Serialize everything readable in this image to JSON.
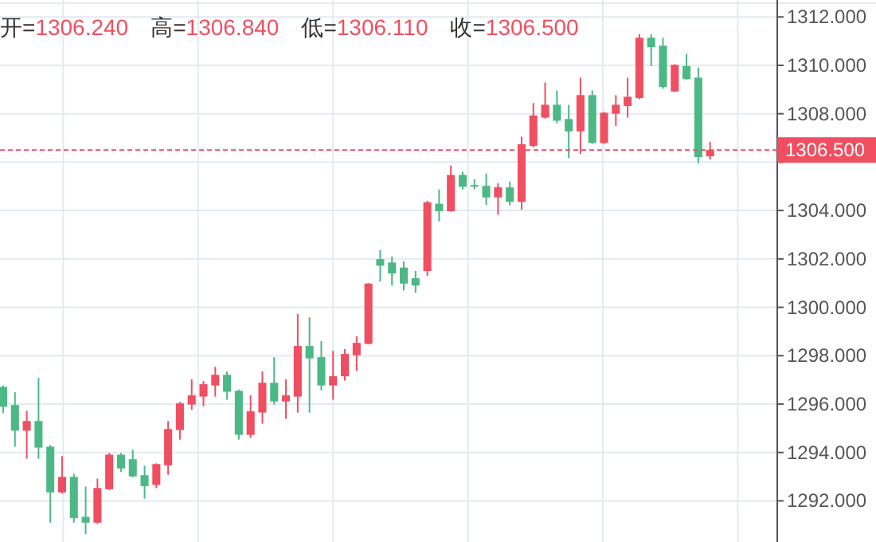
{
  "chart_data": {
    "type": "candlestick",
    "annotations": [
      "开=1306.240",
      "高=1306.840",
      "低=1306.110",
      "收=1306.500"
    ],
    "categories": [
      null,
      null,
      null,
      null,
      null,
      null,
      null,
      null,
      null,
      null,
      null,
      null,
      null,
      null,
      null,
      null,
      null,
      null,
      null,
      null,
      null,
      null,
      null,
      null,
      null,
      null,
      null,
      null,
      null,
      null,
      null,
      null,
      null,
      null,
      null,
      null,
      null,
      null,
      null,
      null,
      null,
      null,
      null,
      null,
      null,
      null,
      null,
      null,
      null,
      null,
      null,
      null,
      null,
      null,
      null,
      null,
      null,
      null,
      null,
      null,
      null
    ],
    "ohlc": [
      [
        1296.71,
        1296.77,
        1295.63,
        1295.89
      ],
      [
        1295.96,
        1296.49,
        1294.24,
        1294.9
      ],
      [
        1294.9,
        1295.72,
        1293.74,
        1295.3
      ],
      [
        1295.3,
        1297.08,
        1293.74,
        1294.2
      ],
      [
        1294.24,
        1294.31,
        1291.1,
        1292.35
      ],
      [
        1292.35,
        1293.85,
        1292.3,
        1292.99
      ],
      [
        1292.99,
        1293.12,
        1291.1,
        1291.29
      ],
      [
        1291.34,
        1292.59,
        1290.63,
        1291.1
      ],
      [
        1291.1,
        1292.92,
        1291.05,
        1292.53
      ],
      [
        1292.48,
        1293.98,
        1292.45,
        1293.91
      ],
      [
        1293.91,
        1293.98,
        1293.19,
        1293.34
      ],
      [
        1293.72,
        1294.11,
        1292.98,
        1293.01
      ],
      [
        1293.06,
        1293.45,
        1292.09,
        1292.61
      ],
      [
        1292.66,
        1293.55,
        1292.53,
        1293.52
      ],
      [
        1293.47,
        1295.3,
        1293.08,
        1294.97
      ],
      [
        1294.93,
        1296.09,
        1294.53,
        1296.03
      ],
      [
        1295.98,
        1297.02,
        1295.76,
        1296.36
      ],
      [
        1296.31,
        1296.95,
        1295.91,
        1296.82
      ],
      [
        1296.77,
        1297.54,
        1296.31,
        1297.21
      ],
      [
        1297.21,
        1297.35,
        1296.18,
        1296.51
      ],
      [
        1296.55,
        1296.6,
        1294.53,
        1294.73
      ],
      [
        1294.73,
        1296.36,
        1294.6,
        1295.7
      ],
      [
        1295.65,
        1297.35,
        1295.19,
        1296.88
      ],
      [
        1296.88,
        1297.94,
        1295.98,
        1296.11
      ],
      [
        1296.11,
        1297.02,
        1295.39,
        1296.36
      ],
      [
        1296.31,
        1299.72,
        1295.65,
        1298.4
      ],
      [
        1298.4,
        1299.59,
        1295.65,
        1297.89
      ],
      [
        1297.94,
        1298.6,
        1296.57,
        1296.77
      ],
      [
        1296.77,
        1298.2,
        1296.18,
        1297.15
      ],
      [
        1297.15,
        1298.27,
        1296.97,
        1298.07
      ],
      [
        1298.02,
        1298.8,
        1297.37,
        1298.53
      ],
      [
        1298.49,
        1301.0,
        1298.47,
        1300.98
      ],
      [
        1301.99,
        1302.36,
        1301.06,
        1301.72
      ],
      [
        1301.85,
        1302.1,
        1300.9,
        1301.4
      ],
      [
        1301.64,
        1301.9,
        1300.7,
        1300.98
      ],
      [
        1301.2,
        1301.5,
        1300.6,
        1300.9
      ],
      [
        1301.5,
        1304.4,
        1301.3,
        1304.34
      ],
      [
        1304.28,
        1304.87,
        1303.55,
        1303.97
      ],
      [
        1303.97,
        1305.86,
        1303.95,
        1305.47
      ],
      [
        1305.47,
        1305.6,
        1304.87,
        1304.98
      ],
      [
        1305.05,
        1305.29,
        1304.87,
        1305.0
      ],
      [
        1305.02,
        1305.53,
        1304.23,
        1304.54
      ],
      [
        1304.54,
        1305.13,
        1303.82,
        1304.96
      ],
      [
        1304.96,
        1305.2,
        1304.21,
        1304.36
      ],
      [
        1304.36,
        1307.05,
        1304.03,
        1306.74
      ],
      [
        1306.67,
        1308.44,
        1306.61,
        1307.93
      ],
      [
        1307.84,
        1309.29,
        1307.8,
        1308.37
      ],
      [
        1308.37,
        1308.96,
        1307.6,
        1307.71
      ],
      [
        1307.78,
        1308.37,
        1306.17,
        1307.27
      ],
      [
        1307.27,
        1309.49,
        1306.34,
        1308.77
      ],
      [
        1308.77,
        1308.96,
        1306.75,
        1306.79
      ],
      [
        1306.79,
        1308.08,
        1306.75,
        1308.04
      ],
      [
        1308.0,
        1308.77,
        1307.49,
        1308.37
      ],
      [
        1308.32,
        1309.49,
        1307.84,
        1308.7
      ],
      [
        1308.65,
        1311.29,
        1308.6,
        1311.14
      ],
      [
        1311.14,
        1311.29,
        1309.97,
        1310.75
      ],
      [
        1310.81,
        1311.14,
        1309.03,
        1309.1
      ],
      [
        1308.92,
        1310.05,
        1308.9,
        1310.02
      ],
      [
        1309.97,
        1310.48,
        1309.4,
        1309.43
      ],
      [
        1309.49,
        1309.91,
        1305.95,
        1306.21
      ],
      [
        1306.24,
        1306.84,
        1306.11,
        1306.5
      ]
    ],
    "colors": [
      "#4cb886",
      "#4cb886",
      "#ef4f61",
      "#4cb886",
      "#4cb886",
      "#ef4f61",
      "#4cb886",
      "#4cb886",
      "#ef4f61",
      "#ef4f61",
      "#4cb886",
      "#4cb886",
      "#4cb886",
      "#ef4f61",
      "#ef4f61",
      "#ef4f61",
      "#ef4f61",
      "#ef4f61",
      "#ef4f61",
      "#4cb886",
      "#4cb886",
      "#ef4f61",
      "#ef4f61",
      "#4cb886",
      "#ef4f61",
      "#ef4f61",
      "#4cb886",
      "#4cb886",
      "#ef4f61",
      "#ef4f61",
      "#ef4f61",
      "#ef4f61",
      "#4cb886",
      "#4cb886",
      "#4cb886",
      "#4cb886",
      "#ef4f61",
      "#4cb886",
      "#ef4f61",
      "#4cb886",
      "#4cb886",
      "#4cb886",
      "#ef4f61",
      "#4cb886",
      "#ef4f61",
      "#ef4f61",
      "#ef4f61",
      "#4cb886",
      "#4cb886",
      "#ef4f61",
      "#4cb886",
      "#ef4f61",
      "#ef4f61",
      "#ef4f61",
      "#ef4f61",
      "#4cb886",
      "#4cb886",
      "#ef4f61",
      "#4cb886",
      "#4cb886",
      "#ef4f61"
    ],
    "ylim": [
      1290.3,
      1312.7
    ],
    "yticks": [
      {
        "value": 1292,
        "label": "1292.000"
      },
      {
        "value": 1294,
        "label": "1294.000"
      },
      {
        "value": 1296,
        "label": "1296.000"
      },
      {
        "value": 1298,
        "label": "1298.000"
      },
      {
        "value": 1300,
        "label": "1300.000"
      },
      {
        "value": 1302,
        "label": "1302.000"
      },
      {
        "value": 1304,
        "label": "1304.000"
      },
      {
        "value": 1306,
        "label": null
      },
      {
        "value": 1308,
        "label": "1308.000"
      },
      {
        "value": 1310,
        "label": "1310.000"
      },
      {
        "value": 1312,
        "label": "1312.000"
      }
    ],
    "grid": true,
    "ref_lines": [
      {
        "axis": "y",
        "value": 1306.5,
        "label": "1306.500",
        "color": "#ef4f61",
        "line_style": "dashed"
      }
    ]
  }
}
